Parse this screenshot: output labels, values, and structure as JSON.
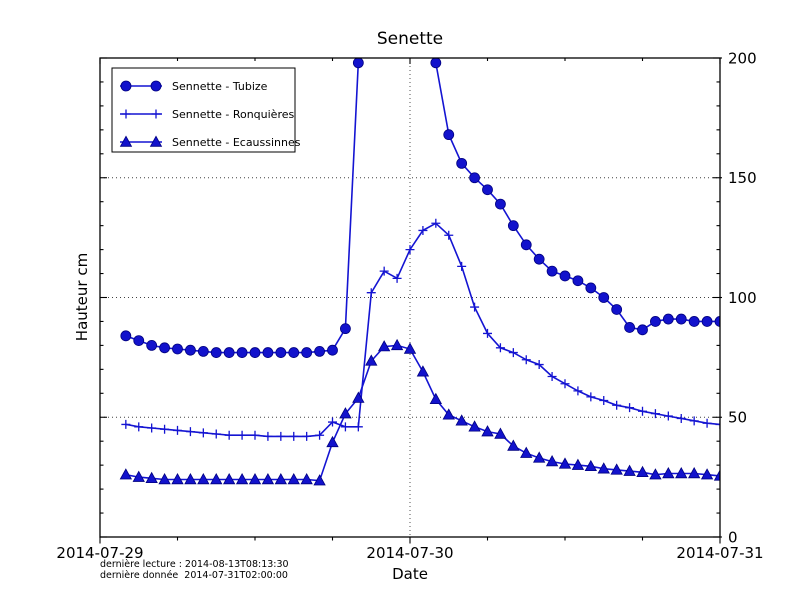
{
  "figure": {
    "title": "Senette",
    "xlabel": "Date",
    "ylabel": "Hauteur cm",
    "footnote_line1": "dernière lecture : 2014-08-13T08:13:30",
    "footnote_line2": "dernière donnée  2014-07-31T02:00:00"
  },
  "chart_data": {
    "type": "line",
    "title": "Senette",
    "xlabel": "Date",
    "ylabel": "Hauteur cm",
    "ylim": [
      0,
      200
    ],
    "yticks": [
      0,
      50,
      100,
      150,
      200
    ],
    "grid": {
      "horizontal_dotted_at": [
        50,
        100,
        150
      ],
      "vertical_dotted_at_hour": 24,
      "style": "dotted"
    },
    "legend_position": "upper left",
    "x_axis": {
      "tick_labels": [
        "2014-07-29",
        "2014-07-30",
        "2014-07-31"
      ],
      "tick_hours": [
        0,
        24,
        48
      ],
      "minor_tick_every_hours": 6,
      "unit": "hours after 2014-07-29T00:00",
      "range_hours": [
        0,
        48
      ]
    },
    "x": [
      2,
      3,
      4,
      5,
      6,
      7,
      8,
      9,
      10,
      11,
      12,
      13,
      14,
      15,
      16,
      17,
      18,
      19,
      20,
      21,
      22,
      23,
      24,
      25,
      26,
      27,
      28,
      29,
      30,
      31,
      32,
      33,
      34,
      35,
      36,
      37,
      38,
      39,
      40,
      41,
      42,
      43,
      44,
      45,
      46,
      47,
      48
    ],
    "series": [
      {
        "name": "Sennette - Tubize",
        "marker": "circle",
        "note": "null = value above 200, off scale (peak clipped at top of axes)",
        "values": [
          84,
          82,
          80,
          79,
          78.5,
          78,
          77.5,
          77,
          77,
          77,
          77,
          77,
          77,
          77,
          77,
          77.5,
          78,
          87,
          198,
          null,
          null,
          null,
          null,
          null,
          198,
          168,
          156,
          150,
          145,
          139,
          130,
          122,
          116,
          111,
          109,
          107,
          104,
          100,
          95,
          87.5,
          86.5,
          90,
          91,
          91,
          90,
          90,
          90
        ]
      },
      {
        "name": "Sennette - Ronquières",
        "marker": "plus",
        "values": [
          47,
          46,
          45.5,
          45,
          44.5,
          44,
          43.5,
          43,
          42.5,
          42.5,
          42.5,
          42,
          42,
          42,
          42,
          42.5,
          48,
          46,
          46,
          102,
          111,
          108,
          120,
          128,
          131,
          126,
          113,
          96,
          85,
          79,
          77,
          74,
          72,
          67,
          64,
          61,
          58.5,
          57,
          55,
          54,
          52.5,
          51.5,
          50.5,
          49.5,
          48.5,
          47.5,
          47
        ]
      },
      {
        "name": "Sennette - Ecaussinnes",
        "marker": "triangle",
        "values": [
          26,
          25,
          24.5,
          24,
          24,
          24,
          24,
          24,
          24,
          24,
          24,
          24,
          24,
          24,
          24,
          23.5,
          39.5,
          51.5,
          58,
          73.5,
          79.5,
          80,
          78.5,
          69,
          57.5,
          51,
          48.5,
          46,
          44,
          43,
          38,
          35,
          33,
          31.5,
          30.5,
          30,
          29.5,
          28.5,
          28,
          27.5,
          27,
          26,
          26.5,
          26.5,
          26.5,
          26,
          25.5
        ]
      }
    ],
    "colors": {
      "line": "#1414d2",
      "marker_fill": "#1212cc",
      "marker_edge": "#000080",
      "grid": "#404040",
      "axis": "#000000"
    },
    "footnotes": [
      "dernière lecture : 2014-08-13T08:13:30",
      "dernière donnée  2014-07-31T02:00:00"
    ]
  }
}
